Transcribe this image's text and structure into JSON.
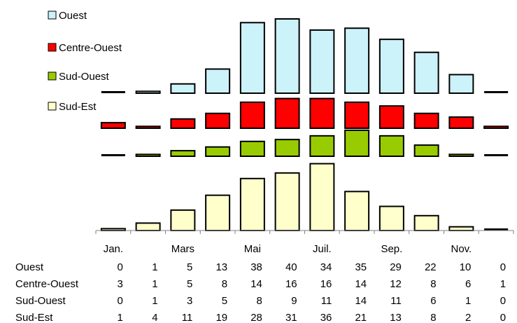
{
  "chart_data": {
    "type": "bar",
    "categories": [
      "Jan.",
      "",
      "Mars",
      "",
      "Mai",
      "",
      "Juil.",
      "",
      "Sep.",
      "",
      "Nov.",
      ""
    ],
    "series": [
      {
        "name": "Ouest",
        "color": "#ccf2fa",
        "values": [
          0,
          1,
          5,
          13,
          38,
          40,
          34,
          35,
          29,
          22,
          10,
          0
        ]
      },
      {
        "name": "Centre-Ouest",
        "color": "#ff0000",
        "values": [
          3,
          1,
          5,
          8,
          14,
          16,
          16,
          14,
          12,
          8,
          6,
          1
        ]
      },
      {
        "name": "Sud-Ouest",
        "color": "#99cc00",
        "values": [
          0,
          1,
          3,
          5,
          8,
          9,
          11,
          14,
          11,
          6,
          1,
          0
        ]
      },
      {
        "name": "Sud-Est",
        "color": "#ffffcc",
        "values": [
          1,
          4,
          11,
          19,
          28,
          31,
          36,
          21,
          13,
          8,
          2,
          0
        ]
      }
    ],
    "legend_position": "top-left",
    "grid": false
  }
}
